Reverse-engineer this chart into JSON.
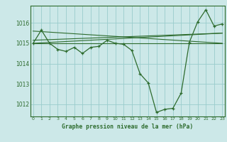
{
  "hours": [
    0,
    1,
    2,
    3,
    4,
    5,
    6,
    7,
    8,
    9,
    10,
    11,
    12,
    13,
    14,
    15,
    16,
    17,
    18,
    19,
    20,
    21,
    22,
    23
  ],
  "main_series": [
    1015.0,
    1015.65,
    1015.0,
    1014.7,
    1014.6,
    1014.8,
    1014.5,
    1014.8,
    1014.85,
    1015.15,
    1015.0,
    1014.95,
    1014.65,
    1013.5,
    1013.05,
    1011.6,
    1011.75,
    1011.8,
    1012.55,
    1015.05,
    1016.05,
    1016.65,
    1015.85,
    1015.95
  ],
  "trend_lines": [
    {
      "x": [
        0,
        23
      ],
      "y": [
        1015.0,
        1015.0
      ]
    },
    {
      "x": [
        0,
        23
      ],
      "y": [
        1015.6,
        1015.0
      ]
    },
    {
      "x": [
        0,
        23
      ],
      "y": [
        1015.0,
        1015.5
      ]
    },
    {
      "x": [
        0,
        23
      ],
      "y": [
        1015.15,
        1015.5
      ]
    }
  ],
  "bg_color": "#cce8e8",
  "line_color": "#2d6b2d",
  "grid_color": "#99cccc",
  "xlabel": "Graphe pression niveau de la mer (hPa)",
  "ylim": [
    1011.4,
    1016.85
  ],
  "yticks": [
    1012,
    1013,
    1014,
    1015,
    1016
  ],
  "xticks": [
    0,
    1,
    2,
    3,
    4,
    5,
    6,
    7,
    8,
    9,
    10,
    11,
    12,
    13,
    14,
    15,
    16,
    17,
    18,
    19,
    20,
    21,
    22,
    23
  ],
  "xlim": [
    -0.3,
    23.3
  ]
}
